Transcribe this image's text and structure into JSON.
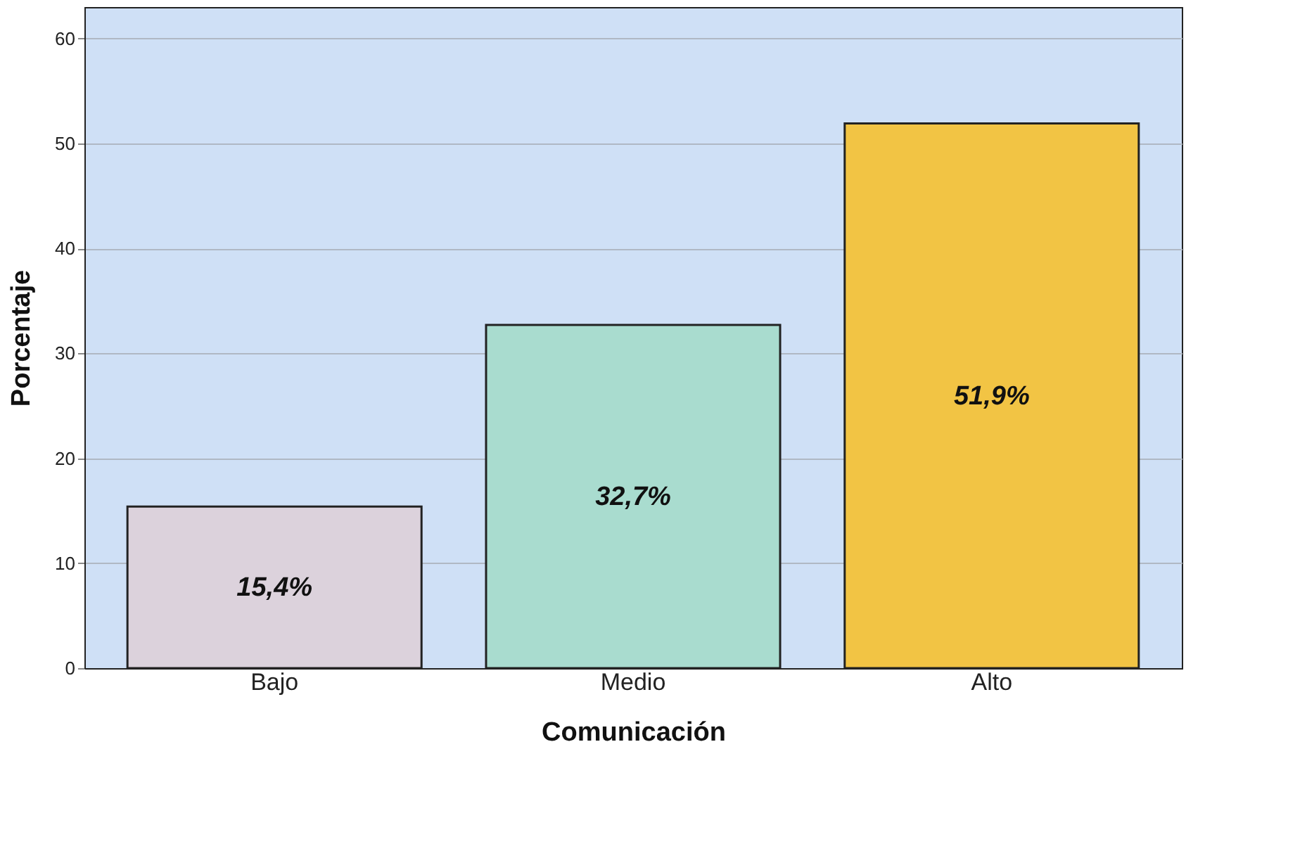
{
  "chart_data": {
    "type": "bar",
    "xlabel": "Comunicación",
    "ylabel": "Porcentaje",
    "categories": [
      "Bajo",
      "Medio",
      "Alto"
    ],
    "values": [
      15.4,
      32.7,
      51.9
    ],
    "colors": [
      "#dcd2dc",
      "#a9dccf",
      "#f2c444"
    ],
    "value_labels": [
      "15,4%",
      "32,7%",
      "51,9%"
    ],
    "ylim": [
      0,
      63
    ],
    "yticks": [
      0,
      10,
      20,
      30,
      40,
      50,
      60
    ],
    "grid": "y"
  }
}
